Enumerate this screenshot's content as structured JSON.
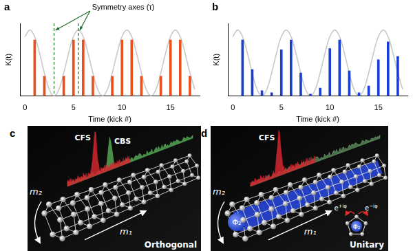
{
  "chart_data": [
    {
      "type": "bar",
      "panel_label": "a",
      "xlabel": "Time (kick #)",
      "ylabel": "K(t)",
      "xlim": [
        -0.5,
        18
      ],
      "xticks": [
        0,
        5,
        10,
        15
      ],
      "ylim": [
        0,
        1.1
      ],
      "tick_labels": "x",
      "grid": false,
      "symmetry_axes": {
        "label": "Symmetry axes (τ)",
        "x": [
          3,
          5.5
        ]
      },
      "series": [
        {
          "type": "line",
          "color": "#c8c8c8",
          "x": [
            0,
            0.5,
            1,
            1.5,
            2,
            2.5,
            3,
            3.5,
            4,
            4.5,
            5,
            5.5,
            6,
            6.5,
            7,
            7.5,
            8,
            8.5,
            9,
            9.5,
            10,
            10.5,
            11,
            11.5,
            12,
            12.5,
            13,
            13.5,
            14,
            14.5,
            15,
            15.5,
            16,
            16.5,
            17,
            17.5
          ],
          "values": [
            0.9,
            1,
            0.9,
            0.65,
            0.35,
            0.1,
            0,
            0.1,
            0.35,
            0.65,
            0.9,
            1,
            0.9,
            0.65,
            0.35,
            0.1,
            0,
            0.1,
            0.35,
            0.65,
            0.9,
            1,
            0.9,
            0.65,
            0.35,
            0.1,
            0,
            0.1,
            0.35,
            0.65,
            0.9,
            1,
            0.9,
            0.65,
            0.35,
            0.1
          ]
        },
        {
          "type": "bar",
          "color": "#e8501e",
          "x": [
            1,
            2,
            4,
            5,
            6,
            7,
            9,
            10,
            11,
            12,
            14,
            15,
            16,
            17
          ],
          "values": [
            0.85,
            0.3,
            0.3,
            0.85,
            0.85,
            0.3,
            0.3,
            0.85,
            0.85,
            0.3,
            0.3,
            0.85,
            0.85,
            0.3
          ]
        }
      ]
    },
    {
      "type": "bar",
      "panel_label": "b",
      "xlabel": "Time (kick #)",
      "ylabel": "K(t)",
      "xlim": [
        -0.5,
        18
      ],
      "xticks": [
        0,
        5,
        10,
        15
      ],
      "ylim": [
        0,
        1.1
      ],
      "tick_labels": "x",
      "grid": false,
      "series": [
        {
          "type": "line",
          "color": "#c8c8c8",
          "x": [
            0,
            0.5,
            1,
            1.5,
            2,
            2.5,
            3,
            3.5,
            4,
            4.5,
            5,
            5.5,
            6,
            6.5,
            7,
            7.5,
            8,
            8.5,
            9,
            9.5,
            10,
            10.5,
            11,
            11.5,
            12,
            12.5,
            13,
            13.5,
            14,
            14.5,
            15,
            15.5,
            16,
            16.5,
            17,
            17.5
          ],
          "values": [
            0.9,
            1,
            0.9,
            0.65,
            0.35,
            0.1,
            0,
            0.1,
            0.35,
            0.65,
            0.9,
            1,
            0.9,
            0.65,
            0.35,
            0.1,
            0,
            0.1,
            0.35,
            0.65,
            0.9,
            1,
            0.9,
            0.65,
            0.35,
            0.1,
            0,
            0.1,
            0.35,
            0.65,
            0.9,
            1,
            0.9,
            0.65,
            0.35,
            0.1
          ]
        },
        {
          "type": "bar",
          "color": "#1a3fd0",
          "x": [
            1,
            2,
            3,
            4,
            5,
            6,
            7,
            8,
            9,
            10,
            11,
            12,
            13,
            14,
            15,
            16,
            17
          ],
          "values": [
            0.85,
            0.4,
            0.08,
            0.05,
            0.7,
            0.85,
            0.35,
            0.03,
            0.12,
            0.72,
            0.85,
            0.38,
            0.05,
            0.15,
            0.55,
            0.82,
            0.6
          ]
        }
      ]
    }
  ],
  "diagrams": [
    {
      "panel_label": "c",
      "caption": "Orthogonal",
      "axis_labels": [
        "m₁",
        "m₂"
      ],
      "peaks": [
        {
          "label": "CFS",
          "color": "#d4262e"
        },
        {
          "label": "CBS",
          "color": "#5cb85c"
        }
      ]
    },
    {
      "panel_label": "d",
      "caption": "Unitary",
      "axis_labels": [
        "m₁",
        "m₂"
      ],
      "peaks": [
        {
          "label": "CFS",
          "color": "#d4262e"
        }
      ],
      "flux": "Φ₂",
      "phases": [
        {
          "base": "e",
          "sup": "+iφ"
        },
        {
          "base": "e",
          "sup": "−iφ"
        }
      ]
    }
  ]
}
